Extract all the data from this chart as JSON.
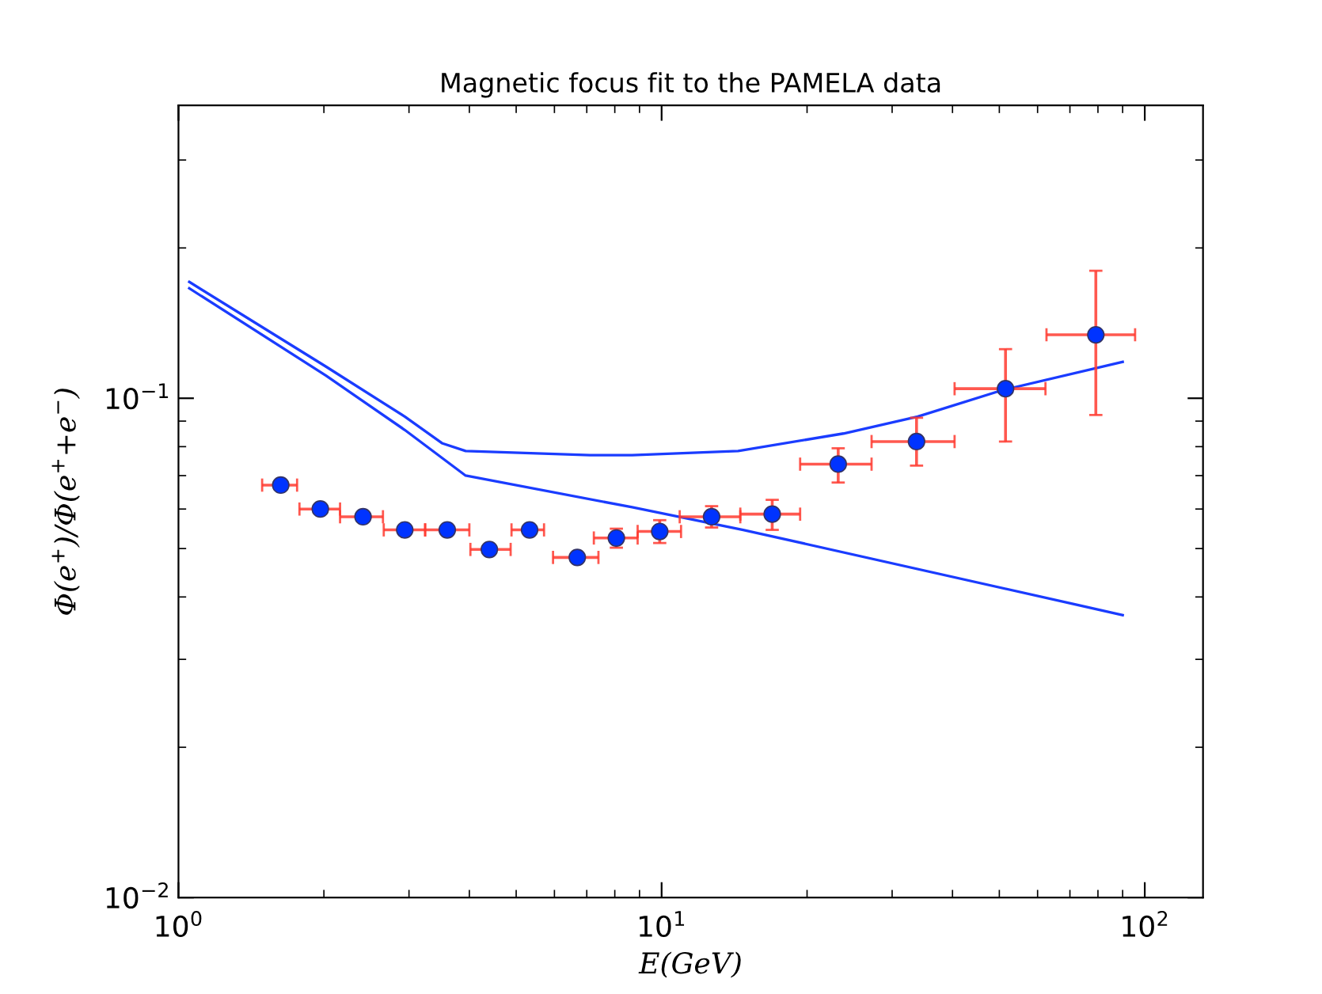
{
  "chart_data": {
    "type": "scatter",
    "title": "Magnetic focus fit to the PAMELA data",
    "xlabel": "E(GeV)",
    "ylabel": "Φ(e$^{+}$)/Φ(e$^{+}$+e$^{−}$)",
    "log": "xy",
    "grid": false,
    "legend": false,
    "xlim": [
      1,
      132
    ],
    "ylim": [
      0.01,
      0.386
    ],
    "xticks": [
      {
        "value": 1,
        "label": "10$^{0}$"
      },
      {
        "value": 10,
        "label": "10$^{1}$"
      },
      {
        "value": 100,
        "label": "10$^{2}$"
      }
    ],
    "yticks": [
      {
        "value": 0.01,
        "label": "10$^{−2}$"
      },
      {
        "value": 0.1,
        "label": "10$^{−1}$"
      }
    ],
    "series": [
      {
        "type": "line",
        "color": "#1a3cff",
        "marker": "none",
        "line_style": "solid",
        "x": [
          1.053,
          2.02,
          2.94,
          3.51,
          3.93,
          7.11,
          8.69,
          14.4,
          23.8,
          33.9,
          50.7,
          90.0
        ],
        "values": [
          0.171,
          0.1157,
          0.0919,
          0.0813,
          0.0784,
          0.0769,
          0.0769,
          0.0784,
          0.085,
          0.0919,
          0.1038,
          0.1183
        ]
      },
      {
        "type": "line",
        "color": "#1a3cff",
        "marker": "none",
        "line_style": "solid",
        "x": [
          1.053,
          2.02,
          2.94,
          3.93,
          8.69,
          14.75,
          90.0
        ],
        "values": [
          0.166,
          0.111,
          0.0864,
          0.07,
          0.0605,
          0.0545,
          0.0368
        ]
      },
      {
        "color": "#0033ff",
        "marker": "circle",
        "x": [
          1.628,
          1.966,
          2.41,
          2.94,
          3.6,
          4.4,
          5.33,
          6.69,
          8.06,
          9.91,
          12.69,
          16.94,
          23.2,
          33.7,
          51.5,
          79.2
        ],
        "values": [
          0.067,
          0.06,
          0.0579,
          0.0545,
          0.0545,
          0.0498,
          0.0545,
          0.048,
          0.0525,
          0.0541,
          0.0579,
          0.0586,
          0.0738,
          0.0819,
          0.1045,
          0.134
        ],
        "errors": [
          null,
          null,
          null,
          null,
          null,
          null,
          null,
          null,
          [
            0.0502,
            0.0548
          ],
          [
            0.0513,
            0.057
          ],
          [
            0.0551,
            0.0608
          ],
          [
            0.0545,
            0.0626
          ],
          [
            0.0678,
            0.0794
          ],
          [
            0.0733,
            0.0914
          ],
          [
            0.0819,
            0.1254
          ],
          [
            0.0926,
            0.18
          ]
        ],
        "xerrors": [
          [
            1.49,
            1.76
          ],
          [
            1.78,
            2.16
          ],
          [
            2.16,
            2.65
          ],
          [
            2.66,
            3.24
          ],
          [
            3.24,
            4.0
          ],
          [
            4.02,
            4.87
          ],
          [
            4.89,
            5.71
          ],
          [
            5.96,
            7.4
          ],
          [
            7.24,
            8.92
          ],
          [
            8.92,
            10.97
          ],
          [
            10.9,
            14.55
          ],
          [
            14.55,
            19.35
          ],
          [
            19.35,
            27.2
          ],
          [
            27.2,
            40.4
          ],
          [
            40.4,
            62.3
          ],
          [
            62.6,
            95.5
          ]
        ]
      }
    ]
  }
}
